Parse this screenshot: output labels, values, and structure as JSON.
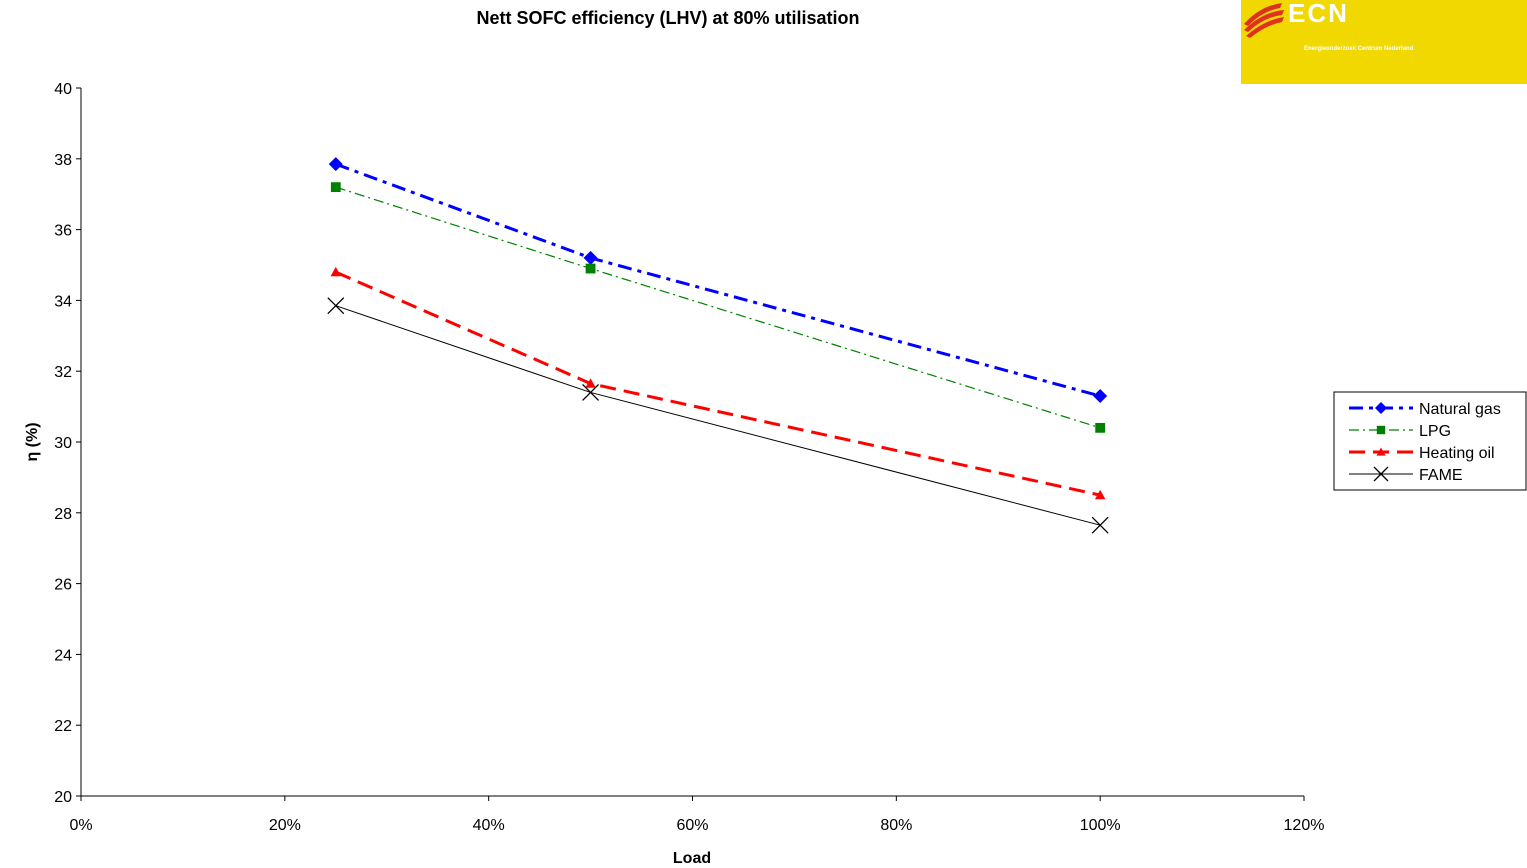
{
  "logo": {
    "name": "ECN",
    "subtitle": "Energieonderzoek Centrum Nederland",
    "background_color": "#f0d800"
  },
  "chart_data": {
    "type": "line",
    "title": "Nett SOFC efficiency (LHV) at 80% utilisation",
    "xlabel": "Load",
    "ylabel": "η (%)",
    "xlim": [
      0,
      120
    ],
    "ylim": [
      20,
      40
    ],
    "x_ticks": [
      0,
      20,
      40,
      60,
      80,
      100,
      120
    ],
    "x_tick_labels": [
      "0%",
      "20%",
      "40%",
      "60%",
      "80%",
      "100%",
      "120%"
    ],
    "y_ticks": [
      20,
      22,
      24,
      26,
      28,
      30,
      32,
      34,
      36,
      38,
      40
    ],
    "y_tick_labels": [
      "20",
      "22",
      "24",
      "26",
      "28",
      "30",
      "32",
      "34",
      "36",
      "38",
      "40"
    ],
    "grid": false,
    "legend_position": "right",
    "x": [
      25,
      50,
      100
    ],
    "series": [
      {
        "name": "Natural gas",
        "values": [
          37.85,
          35.2,
          31.3
        ],
        "color": "#0000ff",
        "marker": "diamond",
        "line_style": "dash-dot"
      },
      {
        "name": "LPG",
        "values": [
          37.2,
          34.9,
          30.4
        ],
        "color": "#008000",
        "marker": "square",
        "line_style": "dash-dot-thin"
      },
      {
        "name": "Heating oil",
        "values": [
          34.8,
          31.65,
          28.5
        ],
        "color": "#ff0000",
        "marker": "triangle",
        "line_style": "dash"
      },
      {
        "name": "FAME",
        "values": [
          33.85,
          31.4,
          27.65
        ],
        "color": "#000000",
        "marker": "x",
        "line_style": "solid"
      }
    ]
  }
}
